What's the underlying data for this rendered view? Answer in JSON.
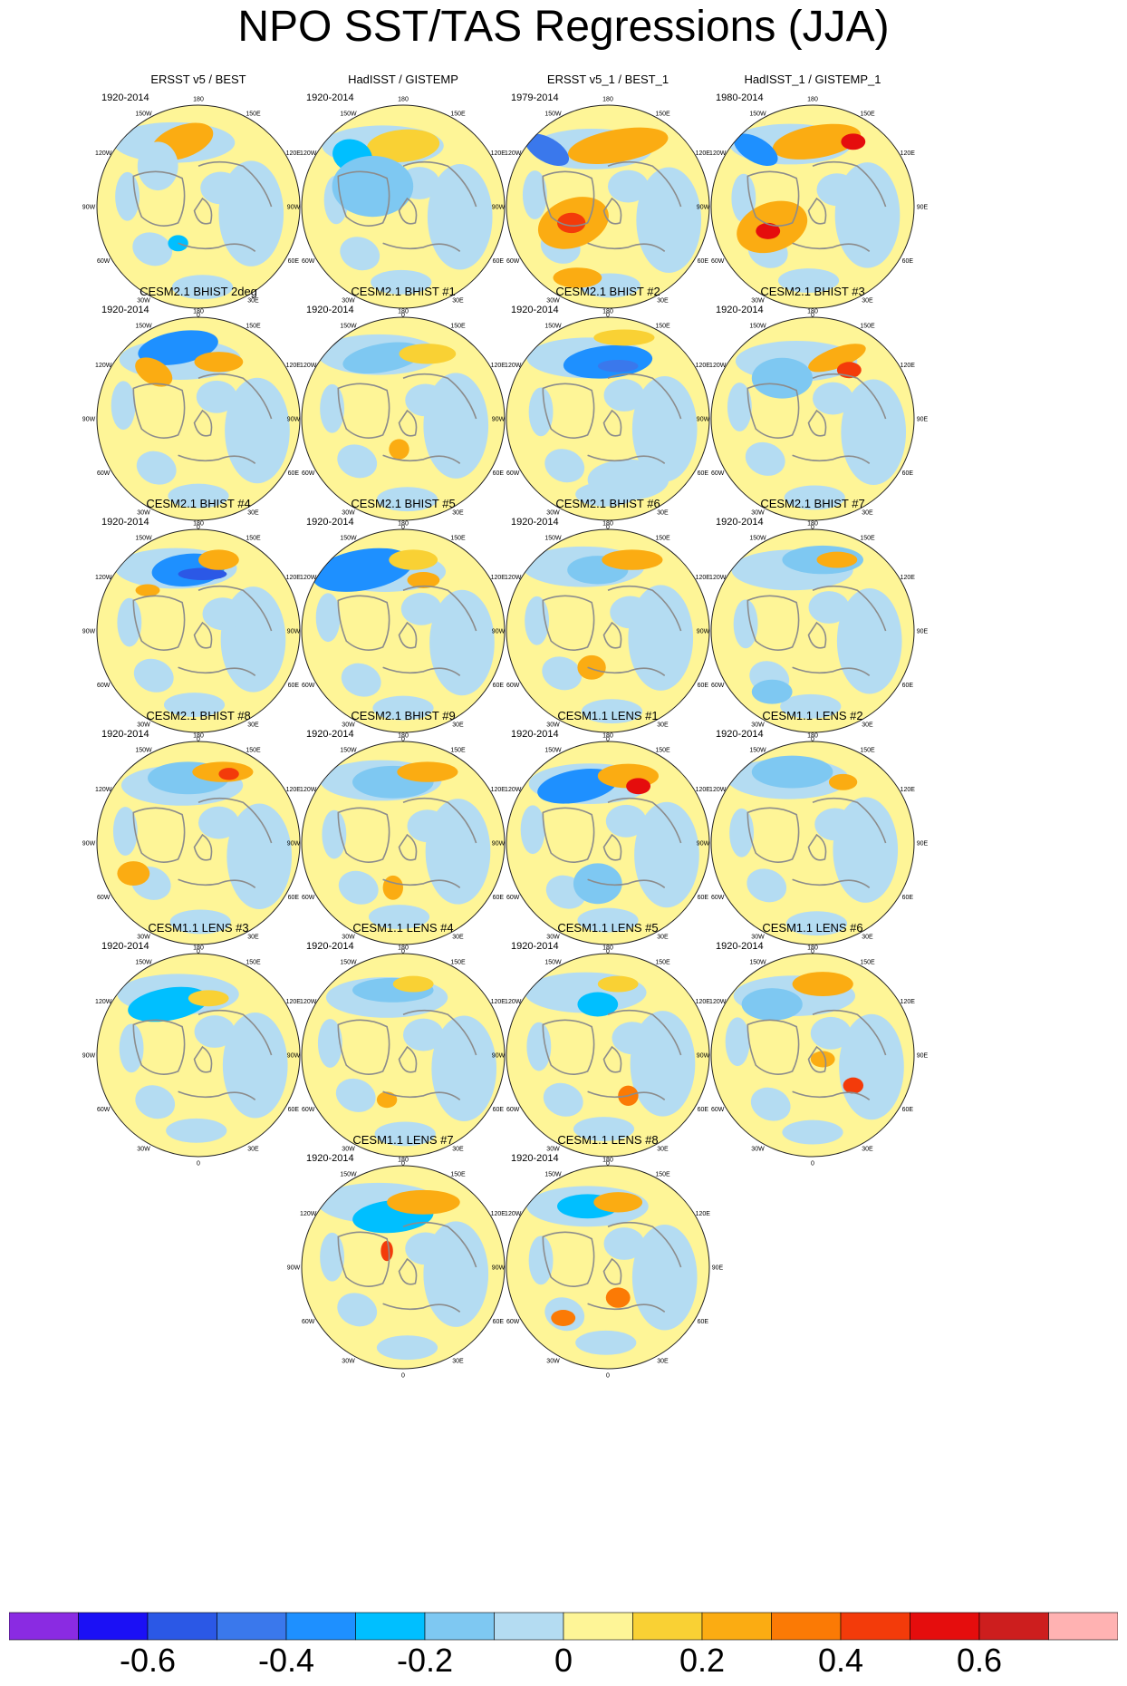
{
  "title": "NPO SST/TAS Regressions (JJA)",
  "lon_labels": [
    "180",
    "150E",
    "120E",
    "90E",
    "60E",
    "30E",
    "0",
    "30W",
    "60W",
    "90W",
    "120W",
    "150W"
  ],
  "panels": [
    {
      "title": "ERSST v5 / BEST",
      "period": "1920-2014"
    },
    {
      "title": "HadISST / GISTEMP",
      "period": "1920-2014"
    },
    {
      "title": "ERSST v5_1 / BEST_1",
      "period": "1979-2014"
    },
    {
      "title": "HadISST_1 / GISTEMP_1",
      "period": "1980-2014"
    },
    {
      "title": "CESM2.1 BHIST 2deg",
      "period": "1920-2014"
    },
    {
      "title": "CESM2.1 BHIST #1",
      "period": "1920-2014"
    },
    {
      "title": "CESM2.1 BHIST #2",
      "period": "1920-2014"
    },
    {
      "title": "CESM2.1 BHIST #3",
      "period": "1920-2014"
    },
    {
      "title": "CESM2.1 BHIST #4",
      "period": "1920-2014"
    },
    {
      "title": "CESM2.1 BHIST #5",
      "period": "1920-2014"
    },
    {
      "title": "CESM2.1 BHIST #6",
      "period": "1920-2014"
    },
    {
      "title": "CESM2.1 BHIST #7",
      "period": "1920-2014"
    },
    {
      "title": "CESM2.1 BHIST #8",
      "period": "1920-2014"
    },
    {
      "title": "CESM2.1 BHIST #9",
      "period": "1920-2014"
    },
    {
      "title": "CESM1.1 LENS #1",
      "period": "1920-2014"
    },
    {
      "title": "CESM1.1 LENS #2",
      "period": "1920-2014"
    },
    {
      "title": "CESM1.1 LENS #3",
      "period": "1920-2014"
    },
    {
      "title": "CESM1.1 LENS #4",
      "period": "1920-2014"
    },
    {
      "title": "CESM1.1 LENS #5",
      "period": "1920-2014"
    },
    {
      "title": "CESM1.1 LENS #6",
      "period": "1920-2014"
    },
    {
      "title": "CESM1.1 LENS #7",
      "period": "1920-2014"
    },
    {
      "title": "CESM1.1 LENS #8",
      "period": "1920-2014"
    }
  ],
  "colorbar": {
    "colors": [
      "#8a2be2",
      "#1b10f5",
      "#2b58e6",
      "#3a78ec",
      "#1e90ff",
      "#00bfff",
      "#7ec8f2",
      "#b4dcf2",
      "#fef597",
      "#f9d134",
      "#fbac12",
      "#fb7a05",
      "#f33b0a",
      "#e50d0d",
      "#cd1e1e",
      "#ffb2b2"
    ],
    "tick_labels": [
      "-0.6",
      "-0.4",
      "-0.2",
      "0",
      "0.2",
      "0.4",
      "0.6"
    ],
    "tick_values": [
      -0.6,
      -0.4,
      -0.2,
      0,
      0.2,
      0.4,
      0.6
    ],
    "range": [
      -0.8,
      0.8
    ]
  },
  "colors": {
    "positive_weak": "#fef597",
    "negative_weak": "#b4dcf2",
    "coastline": "#8c8c8c"
  }
}
